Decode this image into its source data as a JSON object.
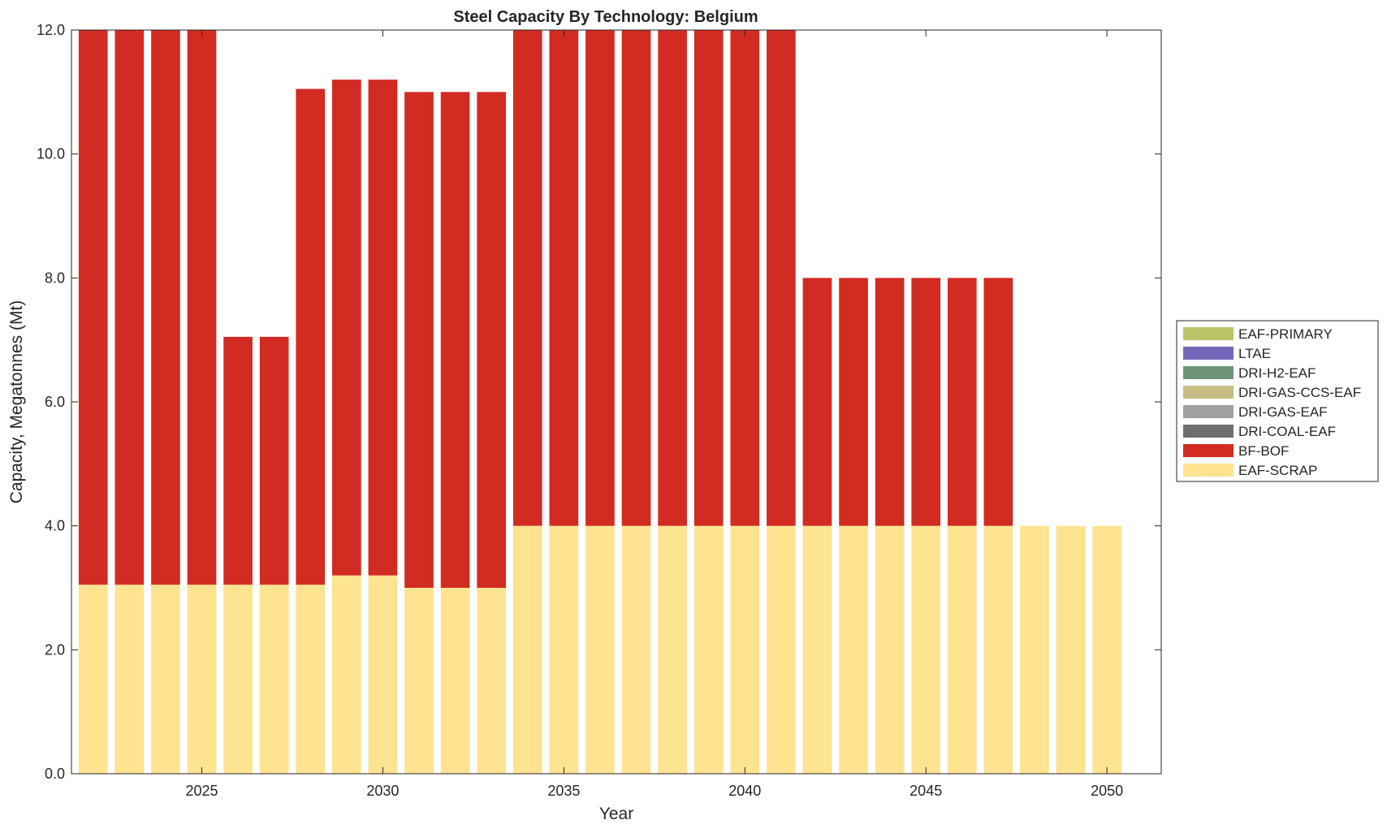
{
  "chart_data": {
    "type": "bar",
    "stacked": true,
    "title": "Steel Capacity By Technology: Belgium",
    "xlabel": "Year",
    "ylabel": "Capacity, Megatonnes (Mt)",
    "xlim": [
      2021.4,
      2051.5
    ],
    "ylim": [
      0,
      12
    ],
    "xticks": [
      2025,
      2030,
      2035,
      2040,
      2045,
      2050
    ],
    "xtick_labels": [
      "2025",
      "2030",
      "2035",
      "2040",
      "2045",
      "2050"
    ],
    "yticks": [
      0,
      2,
      4,
      6,
      8,
      10,
      12
    ],
    "ytick_labels": [
      "0.0",
      "2.0",
      "4.0",
      "6.0",
      "8.0",
      "10.0",
      "12.0"
    ],
    "legend_position": "outside-right",
    "grid": false,
    "categories": [
      2022,
      2023,
      2024,
      2025,
      2026,
      2027,
      2028,
      2029,
      2030,
      2031,
      2032,
      2033,
      2034,
      2035,
      2036,
      2037,
      2038,
      2039,
      2040,
      2041,
      2042,
      2043,
      2044,
      2045,
      2046,
      2047,
      2048,
      2049,
      2050
    ],
    "series": [
      {
        "name": "EAF-SCRAP",
        "color": "#FEE391",
        "values": [
          3.05,
          3.05,
          3.05,
          3.05,
          3.05,
          3.05,
          3.05,
          3.2,
          3.2,
          3.0,
          3.0,
          3.0,
          4.0,
          4.0,
          4.0,
          4.0,
          4.0,
          4.0,
          4.0,
          4.0,
          4.0,
          4.0,
          4.0,
          4.0,
          4.0,
          4.0,
          4.0,
          4.0,
          4.0
        ]
      },
      {
        "name": "BF-BOF",
        "color": "#D22B22",
        "values": [
          9.0,
          9.0,
          9.0,
          9.0,
          4.0,
          4.0,
          8.0,
          8.0,
          8.0,
          8.0,
          8.0,
          8.0,
          8.0,
          8.0,
          8.0,
          8.0,
          8.0,
          8.0,
          8.0,
          8.0,
          4.0,
          4.0,
          4.0,
          4.0,
          4.0,
          4.0,
          0,
          0,
          0
        ]
      },
      {
        "name": "DRI-COAL-EAF",
        "color": "#6E6E6E",
        "values": [
          0,
          0,
          0,
          0,
          0,
          0,
          0,
          0,
          0,
          0,
          0,
          0,
          0,
          0,
          0,
          0,
          0,
          0,
          0,
          0,
          0,
          0,
          0,
          0,
          0,
          0,
          0,
          0,
          0
        ]
      },
      {
        "name": "DRI-GAS-EAF",
        "color": "#A0A0A0",
        "values": [
          0,
          0,
          0,
          0,
          0,
          0,
          0,
          0,
          0,
          0,
          0,
          0,
          0,
          0,
          0,
          0,
          0,
          0,
          0,
          0,
          0,
          0,
          0,
          0,
          0,
          0,
          0,
          0,
          0
        ]
      },
      {
        "name": "DRI-GAS-CCS-EAF",
        "color": "#C6BE82",
        "values": [
          0,
          0,
          0,
          0,
          0,
          0,
          0,
          0,
          0,
          0,
          0,
          0,
          0,
          0,
          0,
          0,
          0,
          0,
          0,
          0,
          0,
          0,
          0,
          0,
          0,
          0,
          0,
          0,
          0
        ]
      },
      {
        "name": "DRI-H2-EAF",
        "color": "#6E9479",
        "values": [
          0,
          0,
          0,
          0,
          0,
          0,
          0,
          0,
          0,
          0,
          0,
          0,
          0,
          0,
          0,
          0,
          0,
          0,
          0,
          0,
          0,
          0,
          0,
          0,
          0,
          0,
          0,
          0,
          0
        ]
      },
      {
        "name": "LTAE",
        "color": "#7468BB",
        "values": [
          0,
          0,
          0,
          0,
          0,
          0,
          0,
          0,
          0,
          0,
          0,
          0,
          0,
          0,
          0,
          0,
          0,
          0,
          0,
          0,
          0,
          0,
          0,
          0,
          0,
          0,
          0,
          0,
          0
        ]
      },
      {
        "name": "EAF-PRIMARY",
        "color": "#BCC46A",
        "values": [
          0,
          0,
          0,
          0,
          0,
          0,
          0,
          0,
          0,
          0,
          0,
          0,
          0,
          0,
          0,
          0,
          0,
          0,
          0,
          0,
          0,
          0,
          0,
          0,
          0,
          0,
          0,
          0,
          0
        ]
      }
    ],
    "legend_order": [
      "EAF-PRIMARY",
      "LTAE",
      "DRI-H2-EAF",
      "DRI-GAS-CCS-EAF",
      "DRI-GAS-EAF",
      "DRI-COAL-EAF",
      "BF-BOF",
      "EAF-SCRAP"
    ]
  }
}
